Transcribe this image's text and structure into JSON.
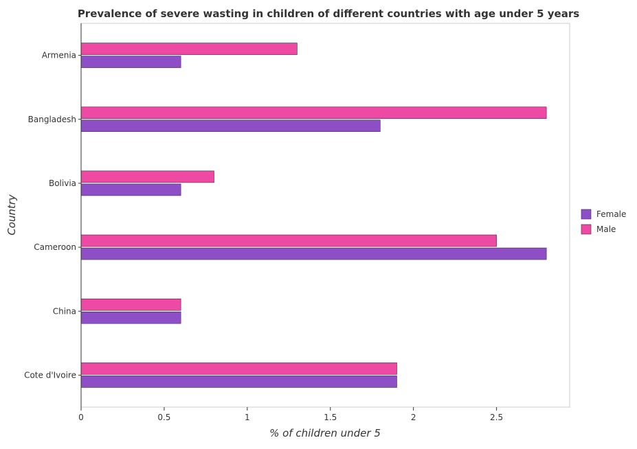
{
  "chart_data": {
    "type": "bar",
    "orientation": "horizontal",
    "title": "Prevalence of severe wasting in children of different countries with age under 5 years",
    "xlabel": "% of children under 5",
    "ylabel": "Country",
    "categories": [
      "Armenia",
      "Bangladesh",
      "Bolivia",
      "Cameroon",
      "China",
      "Cote d'Ivoire"
    ],
    "series": [
      {
        "name": "Female",
        "color": "#8e4fc6",
        "values": [
          0.6,
          1.8,
          0.6,
          2.8,
          0.6,
          1.9
        ]
      },
      {
        "name": "Male",
        "color": "#ee4aa3",
        "values": [
          1.3,
          2.8,
          0.8,
          2.5,
          0.6,
          1.9
        ]
      }
    ],
    "xlim": [
      0,
      2.94
    ],
    "xticks": [
      0,
      0.5,
      1,
      1.5,
      2,
      2.5
    ],
    "xtick_labels": [
      "0",
      "0.5",
      "1",
      "1.5",
      "2",
      "2.5"
    ],
    "grid": false,
    "legend_position": "right"
  }
}
